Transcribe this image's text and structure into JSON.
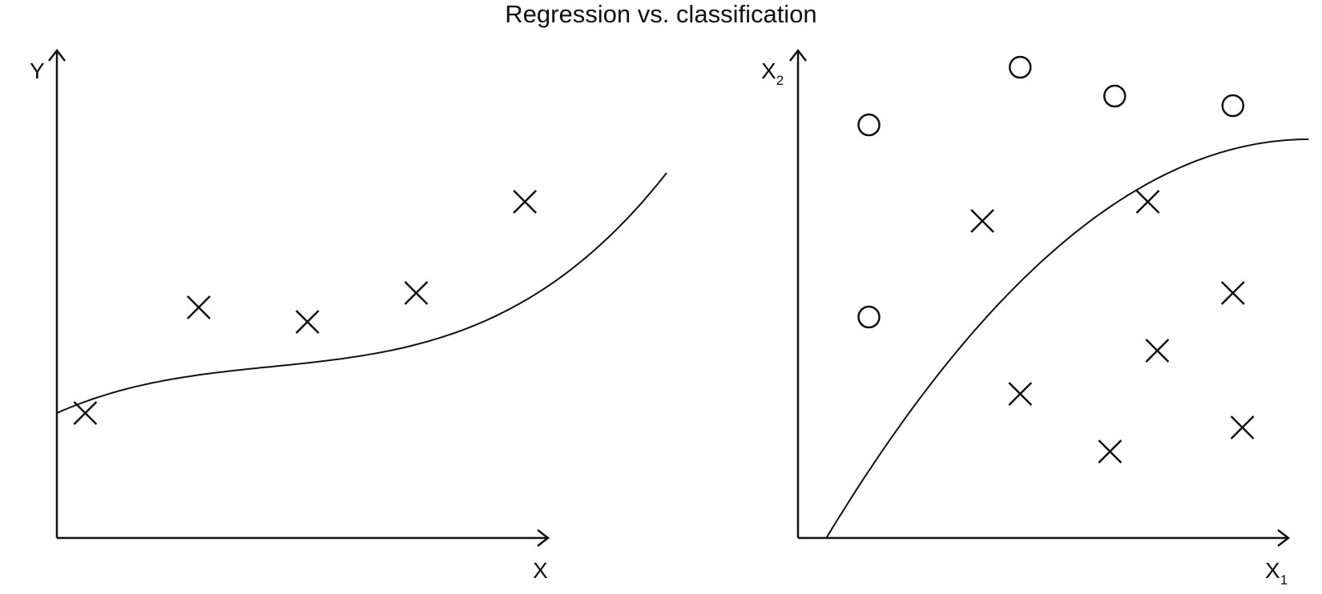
{
  "title": "Regression vs. classification",
  "left_panel": {
    "y_axis_label": "Y",
    "x_axis_label": "X",
    "points": [
      [
        0.06,
        0.26
      ],
      [
        0.3,
        0.48
      ],
      [
        0.53,
        0.45
      ],
      [
        0.76,
        0.51
      ],
      [
        0.99,
        0.7
      ]
    ],
    "curve": {
      "type": "cubic",
      "a": 0.55,
      "b": -0.75,
      "c": 0.44,
      "d": 0.26,
      "x_max": 1.29
    }
  },
  "right_panel": {
    "y_axis_label": "X",
    "y_axis_subscript": "2",
    "x_axis_label": "X",
    "x_axis_subscript": "1",
    "class_o": [
      [
        0.15,
        0.86
      ],
      [
        0.47,
        0.98
      ],
      [
        0.67,
        0.92
      ],
      [
        0.92,
        0.9
      ],
      [
        0.15,
        0.46
      ]
    ],
    "class_x": [
      [
        0.39,
        0.66
      ],
      [
        0.74,
        0.7
      ],
      [
        0.92,
        0.51
      ],
      [
        0.76,
        0.39
      ],
      [
        0.47,
        0.3
      ],
      [
        0.66,
        0.18
      ],
      [
        0.94,
        0.23
      ]
    ],
    "boundary": {
      "type": "quadratic",
      "vertex_x": 1.08,
      "vertex_y": 0.83,
      "zero_x": 0.06,
      "x_max": 1.08
    }
  }
}
